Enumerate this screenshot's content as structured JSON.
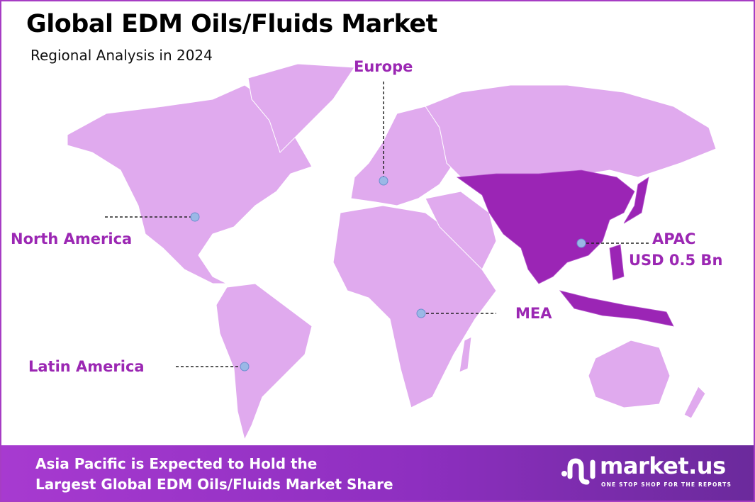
{
  "header": {
    "title": "Global EDM Oils/Fluids Market",
    "subtitle": "Regional Analysis in 2024"
  },
  "map": {
    "colors": {
      "land": "#e0aaee",
      "highlight": "#9b25b5",
      "label": "#9b27b3",
      "marker": "#9ab8e6",
      "border": "#a63dc4"
    },
    "highlighted_region": "APAC",
    "regions": [
      {
        "name": "North America"
      },
      {
        "name": "Europe"
      },
      {
        "name": "APAC",
        "value": "USD 0.5 Bn"
      },
      {
        "name": "MEA"
      },
      {
        "name": "Latin America"
      }
    ]
  },
  "footer": {
    "line1": "Asia Pacific is Expected to Hold the",
    "line2": "Largest Global EDM Oils/Fluids Market Share"
  },
  "logo": {
    "name": "market.us",
    "tagline": "ONE STOP SHOP FOR THE REPORTS"
  }
}
